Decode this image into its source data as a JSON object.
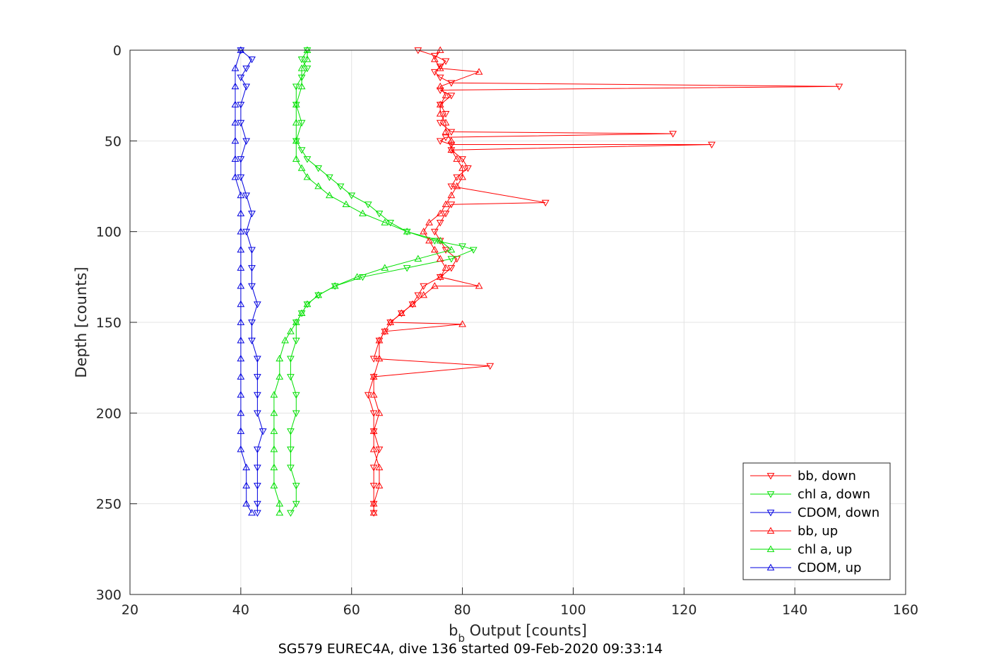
{
  "chart_data": {
    "type": "line",
    "xlabel_main": "b",
    "xlabel_sub": "b",
    "xlabel_rest": " Output [counts]",
    "ylabel": "Depth [counts]",
    "caption": "SG579 EUREC4A, dive 136 started 09-Feb-2020 09:33:14",
    "xlim": [
      20,
      160
    ],
    "ylim": [
      0,
      300
    ],
    "y_reversed": true,
    "grid": true,
    "legend_position": "bottom-right",
    "x_ticks": [
      "20",
      "40",
      "60",
      "80",
      "100",
      "120",
      "140",
      "160"
    ],
    "y_ticks": [
      "0",
      "50",
      "100",
      "150",
      "200",
      "250",
      "300"
    ],
    "colors": {
      "bb": "#ff0000",
      "chl": "#00e000",
      "cdom": "#0000e0"
    },
    "series": [
      {
        "name": "bb, down",
        "color": "#ff0000",
        "marker": "triangle-down",
        "points": [
          [
            72,
            0
          ],
          [
            75,
            3
          ],
          [
            77,
            6
          ],
          [
            76,
            9
          ],
          [
            75,
            12
          ],
          [
            76,
            15
          ],
          [
            78,
            18
          ],
          [
            148,
            20
          ],
          [
            76,
            22
          ],
          [
            78,
            25
          ],
          [
            76,
            30
          ],
          [
            77,
            35
          ],
          [
            76,
            40
          ],
          [
            78,
            45
          ],
          [
            118,
            46
          ],
          [
            77,
            48
          ],
          [
            76,
            50
          ],
          [
            78,
            52
          ],
          [
            125,
            52
          ],
          [
            78,
            55
          ],
          [
            80,
            60
          ],
          [
            81,
            65
          ],
          [
            79,
            70
          ],
          [
            78,
            75
          ],
          [
            95,
            84
          ],
          [
            78,
            85
          ],
          [
            77,
            90
          ],
          [
            76,
            95
          ],
          [
            75,
            100
          ],
          [
            76,
            105
          ],
          [
            77,
            110
          ],
          [
            79,
            115
          ],
          [
            78,
            120
          ],
          [
            76,
            125
          ],
          [
            73,
            130
          ],
          [
            72,
            135
          ],
          [
            71,
            140
          ],
          [
            69,
            145
          ],
          [
            67,
            150
          ],
          [
            66,
            155
          ],
          [
            65,
            160
          ],
          [
            64,
            170
          ],
          [
            85,
            174
          ],
          [
            64,
            180
          ],
          [
            63,
            190
          ],
          [
            64,
            200
          ],
          [
            64,
            210
          ],
          [
            65,
            220
          ],
          [
            64,
            230
          ],
          [
            64,
            240
          ],
          [
            64,
            250
          ],
          [
            64,
            255
          ]
        ]
      },
      {
        "name": "chl a, down",
        "color": "#00e000",
        "marker": "triangle-down",
        "points": [
          [
            52,
            0
          ],
          [
            51,
            5
          ],
          [
            52,
            10
          ],
          [
            51,
            15
          ],
          [
            50,
            20
          ],
          [
            50,
            30
          ],
          [
            51,
            40
          ],
          [
            50,
            50
          ],
          [
            51,
            55
          ],
          [
            52,
            60
          ],
          [
            54,
            65
          ],
          [
            56,
            70
          ],
          [
            58,
            75
          ],
          [
            60,
            80
          ],
          [
            63,
            85
          ],
          [
            65,
            90
          ],
          [
            67,
            95
          ],
          [
            70,
            100
          ],
          [
            75,
            105
          ],
          [
            80,
            108
          ],
          [
            82,
            110
          ],
          [
            78,
            115
          ],
          [
            70,
            120
          ],
          [
            62,
            125
          ],
          [
            57,
            130
          ],
          [
            54,
            135
          ],
          [
            52,
            140
          ],
          [
            51,
            145
          ],
          [
            50,
            150
          ],
          [
            50,
            160
          ],
          [
            49,
            170
          ],
          [
            49,
            180
          ],
          [
            50,
            190
          ],
          [
            50,
            200
          ],
          [
            49,
            210
          ],
          [
            49,
            220
          ],
          [
            49,
            230
          ],
          [
            50,
            240
          ],
          [
            50,
            250
          ],
          [
            49,
            255
          ]
        ]
      },
      {
        "name": "CDOM, down",
        "color": "#0000e0",
        "marker": "triangle-down",
        "points": [
          [
            40,
            0
          ],
          [
            42,
            5
          ],
          [
            41,
            10
          ],
          [
            40,
            15
          ],
          [
            41,
            20
          ],
          [
            40,
            30
          ],
          [
            40,
            40
          ],
          [
            41,
            50
          ],
          [
            40,
            60
          ],
          [
            40,
            70
          ],
          [
            41,
            80
          ],
          [
            42,
            90
          ],
          [
            41,
            100
          ],
          [
            42,
            110
          ],
          [
            42,
            120
          ],
          [
            42,
            130
          ],
          [
            43,
            140
          ],
          [
            42,
            150
          ],
          [
            42,
            160
          ],
          [
            43,
            170
          ],
          [
            43,
            180
          ],
          [
            43,
            190
          ],
          [
            43,
            200
          ],
          [
            44,
            210
          ],
          [
            43,
            220
          ],
          [
            43,
            230
          ],
          [
            43,
            240
          ],
          [
            43,
            250
          ],
          [
            43,
            255
          ]
        ]
      },
      {
        "name": "bb, up",
        "color": "#ff0000",
        "marker": "triangle-up",
        "points": [
          [
            64,
            255
          ],
          [
            64,
            250
          ],
          [
            65,
            240
          ],
          [
            65,
            230
          ],
          [
            64,
            220
          ],
          [
            64,
            210
          ],
          [
            65,
            200
          ],
          [
            64,
            190
          ],
          [
            64,
            180
          ],
          [
            65,
            170
          ],
          [
            65,
            160
          ],
          [
            66,
            155
          ],
          [
            80,
            151
          ],
          [
            67,
            150
          ],
          [
            69,
            145
          ],
          [
            71,
            140
          ],
          [
            73,
            135
          ],
          [
            75,
            130
          ],
          [
            83,
            130
          ],
          [
            76,
            125
          ],
          [
            77,
            120
          ],
          [
            76,
            115
          ],
          [
            75,
            110
          ],
          [
            74,
            105
          ],
          [
            73,
            100
          ],
          [
            74,
            95
          ],
          [
            76,
            90
          ],
          [
            77,
            85
          ],
          [
            78,
            80
          ],
          [
            79,
            75
          ],
          [
            80,
            70
          ],
          [
            80,
            65
          ],
          [
            79,
            60
          ],
          [
            78,
            55
          ],
          [
            78,
            50
          ],
          [
            77,
            45
          ],
          [
            77,
            40
          ],
          [
            76,
            35
          ],
          [
            76,
            30
          ],
          [
            77,
            25
          ],
          [
            76,
            20
          ],
          [
            83,
            12
          ],
          [
            76,
            10
          ],
          [
            75,
            5
          ],
          [
            76,
            0
          ]
        ]
      },
      {
        "name": "chl a, up",
        "color": "#00e000",
        "marker": "triangle-up",
        "points": [
          [
            47,
            255
          ],
          [
            47,
            250
          ],
          [
            46,
            240
          ],
          [
            46,
            230
          ],
          [
            46,
            220
          ],
          [
            46,
            210
          ],
          [
            46,
            200
          ],
          [
            46,
            190
          ],
          [
            47,
            180
          ],
          [
            47,
            170
          ],
          [
            48,
            160
          ],
          [
            49,
            155
          ],
          [
            50,
            150
          ],
          [
            51,
            145
          ],
          [
            52,
            140
          ],
          [
            54,
            135
          ],
          [
            57,
            130
          ],
          [
            61,
            125
          ],
          [
            66,
            120
          ],
          [
            72,
            115
          ],
          [
            78,
            110
          ],
          [
            76,
            105
          ],
          [
            70,
            100
          ],
          [
            66,
            95
          ],
          [
            62,
            90
          ],
          [
            59,
            85
          ],
          [
            56,
            80
          ],
          [
            54,
            75
          ],
          [
            52,
            70
          ],
          [
            51,
            65
          ],
          [
            50,
            60
          ],
          [
            50,
            50
          ],
          [
            50,
            40
          ],
          [
            50,
            30
          ],
          [
            51,
            20
          ],
          [
            51,
            10
          ],
          [
            52,
            5
          ],
          [
            52,
            0
          ]
        ]
      },
      {
        "name": "CDOM, up",
        "color": "#0000e0",
        "marker": "triangle-up",
        "points": [
          [
            42,
            255
          ],
          [
            41,
            250
          ],
          [
            41,
            240
          ],
          [
            41,
            230
          ],
          [
            40,
            220
          ],
          [
            40,
            210
          ],
          [
            40,
            200
          ],
          [
            40,
            190
          ],
          [
            40,
            180
          ],
          [
            40,
            170
          ],
          [
            40,
            160
          ],
          [
            40,
            150
          ],
          [
            40,
            140
          ],
          [
            40,
            130
          ],
          [
            40,
            120
          ],
          [
            40,
            110
          ],
          [
            40,
            100
          ],
          [
            40,
            90
          ],
          [
            40,
            80
          ],
          [
            39,
            70
          ],
          [
            39,
            60
          ],
          [
            39,
            50
          ],
          [
            39,
            40
          ],
          [
            39,
            30
          ],
          [
            39,
            20
          ],
          [
            39,
            10
          ],
          [
            40,
            0
          ]
        ]
      }
    ]
  }
}
